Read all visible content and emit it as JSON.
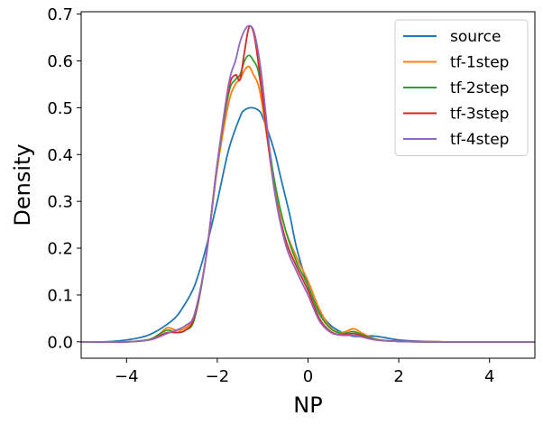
{
  "chart_data": {
    "type": "line",
    "title": "",
    "xlabel": "NP",
    "ylabel": "Density",
    "xlim": [
      -5,
      5
    ],
    "ylim": [
      -0.035,
      0.705
    ],
    "xticks": [
      -4,
      -2,
      0,
      2,
      4
    ],
    "xtick_labels": [
      "−4",
      "−2",
      "0",
      "2",
      "4"
    ],
    "yticks": [
      0.0,
      0.1,
      0.2,
      0.3,
      0.4,
      0.5,
      0.6,
      0.7
    ],
    "ytick_labels": [
      "0.0",
      "0.1",
      "0.2",
      "0.3",
      "0.4",
      "0.5",
      "0.6",
      "0.7"
    ],
    "grid": false,
    "legend_position": "top-right",
    "series": [
      {
        "name": "source",
        "color": "#1f77b4",
        "x": [
          -5,
          -4.5,
          -4,
          -3.5,
          -3,
          -2.75,
          -2.5,
          -2.25,
          -2,
          -1.75,
          -1.5,
          -1.4,
          -1.25,
          -1.1,
          -1,
          -0.75,
          -0.6,
          -0.4,
          -0.25,
          0,
          0.25,
          0.5,
          0.75,
          1,
          1.25,
          1.5,
          2,
          2.5,
          3,
          4,
          5
        ],
        "y": [
          0,
          0,
          0.004,
          0.015,
          0.045,
          0.075,
          0.12,
          0.2,
          0.3,
          0.41,
          0.48,
          0.495,
          0.5,
          0.495,
          0.48,
          0.41,
          0.35,
          0.27,
          0.2,
          0.12,
          0.065,
          0.035,
          0.02,
          0.012,
          0.012,
          0.012,
          0.004,
          0.001,
          0,
          0,
          0
        ]
      },
      {
        "name": "tf-1step",
        "color": "#ff7f0e",
        "x": [
          -5,
          -4,
          -3.5,
          -3.3,
          -3.1,
          -2.9,
          -2.7,
          -2.5,
          -2.25,
          -2,
          -1.75,
          -1.6,
          -1.5,
          -1.4,
          -1.3,
          -1.2,
          -1.1,
          -1,
          -0.75,
          -0.5,
          -0.25,
          0,
          0.25,
          0.5,
          0.75,
          1,
          1.2,
          1.5,
          2,
          3,
          5
        ],
        "y": [
          0,
          0,
          0.005,
          0.015,
          0.03,
          0.025,
          0.03,
          0.06,
          0.18,
          0.37,
          0.51,
          0.55,
          0.56,
          0.58,
          0.588,
          0.57,
          0.55,
          0.5,
          0.34,
          0.24,
          0.18,
          0.13,
          0.07,
          0.03,
          0.02,
          0.028,
          0.018,
          0.006,
          0.001,
          0,
          0
        ]
      },
      {
        "name": "tf-2step",
        "color": "#2ca02c",
        "x": [
          -5,
          -4,
          -3.5,
          -3.3,
          -3.1,
          -2.9,
          -2.7,
          -2.5,
          -2.25,
          -2,
          -1.75,
          -1.6,
          -1.5,
          -1.4,
          -1.3,
          -1.2,
          -1.1,
          -1,
          -0.75,
          -0.5,
          -0.25,
          0,
          0.25,
          0.5,
          0.75,
          1,
          1.2,
          1.5,
          2,
          3,
          5
        ],
        "y": [
          0,
          0,
          0.005,
          0.015,
          0.025,
          0.02,
          0.025,
          0.05,
          0.18,
          0.38,
          0.53,
          0.56,
          0.57,
          0.6,
          0.612,
          0.6,
          0.58,
          0.52,
          0.35,
          0.24,
          0.17,
          0.12,
          0.06,
          0.028,
          0.018,
          0.022,
          0.015,
          0.005,
          0.001,
          0,
          0
        ]
      },
      {
        "name": "tf-3step",
        "color": "#d62728",
        "x": [
          -5,
          -4,
          -3.5,
          -3.3,
          -3.1,
          -2.9,
          -2.7,
          -2.5,
          -2.25,
          -2,
          -1.75,
          -1.6,
          -1.5,
          -1.4,
          -1.3,
          -1.2,
          -1.1,
          -1,
          -0.75,
          -0.5,
          -0.25,
          0,
          0.25,
          0.5,
          0.75,
          1,
          1.2,
          1.5,
          2,
          3,
          5
        ],
        "y": [
          0,
          0,
          0.004,
          0.012,
          0.02,
          0.02,
          0.025,
          0.055,
          0.18,
          0.38,
          0.54,
          0.57,
          0.56,
          0.62,
          0.672,
          0.66,
          0.6,
          0.52,
          0.33,
          0.22,
          0.16,
          0.11,
          0.05,
          0.022,
          0.015,
          0.018,
          0.012,
          0.004,
          0.001,
          0,
          0
        ]
      },
      {
        "name": "tf-4step",
        "color": "#9467bd",
        "x": [
          -5,
          -4,
          -3.5,
          -3.3,
          -3.1,
          -2.9,
          -2.7,
          -2.5,
          -2.25,
          -2,
          -1.75,
          -1.6,
          -1.5,
          -1.4,
          -1.3,
          -1.2,
          -1.1,
          -1,
          -0.75,
          -0.5,
          -0.25,
          0,
          0.25,
          0.5,
          0.75,
          1,
          1.2,
          1.5,
          2,
          3,
          5
        ],
        "y": [
          0,
          0,
          0.004,
          0.01,
          0.018,
          0.025,
          0.035,
          0.06,
          0.18,
          0.38,
          0.55,
          0.6,
          0.64,
          0.665,
          0.675,
          0.665,
          0.62,
          0.55,
          0.33,
          0.21,
          0.15,
          0.1,
          0.045,
          0.02,
          0.014,
          0.014,
          0.01,
          0.004,
          0.001,
          0,
          0
        ]
      }
    ]
  }
}
